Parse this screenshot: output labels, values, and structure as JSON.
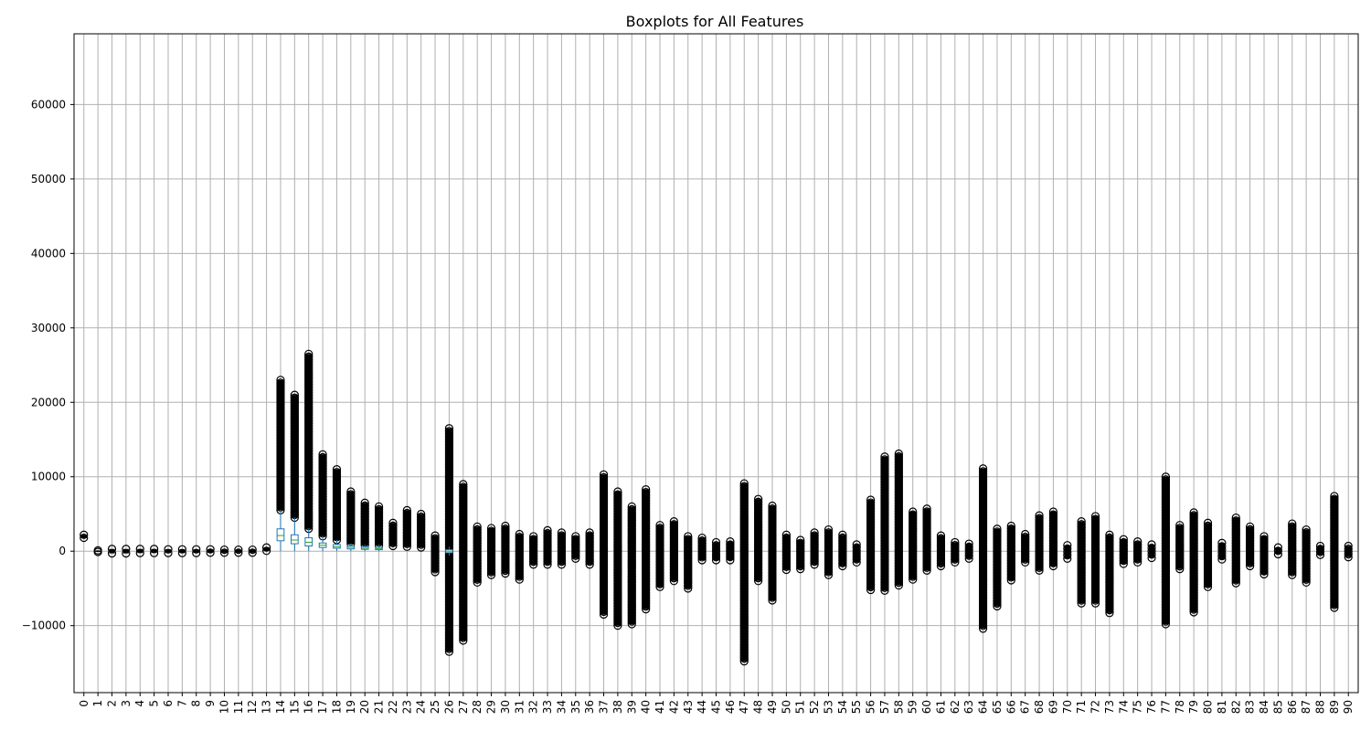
{
  "chart_data": {
    "type": "box",
    "title": "Boxplots for All Features",
    "xlabel": "",
    "ylabel": "",
    "grid": true,
    "ylim": [
      -19000,
      69500
    ],
    "y_ticks": [
      -10000,
      0,
      10000,
      20000,
      30000,
      40000,
      50000,
      60000
    ],
    "categories": [
      "0",
      "1",
      "2",
      "3",
      "4",
      "5",
      "6",
      "7",
      "8",
      "9",
      "10",
      "11",
      "12",
      "13",
      "14",
      "15",
      "16",
      "17",
      "18",
      "19",
      "20",
      "21",
      "22",
      "23",
      "24",
      "25",
      "26",
      "27",
      "28",
      "29",
      "30",
      "31",
      "32",
      "33",
      "34",
      "35",
      "36",
      "37",
      "38",
      "39",
      "40",
      "41",
      "42",
      "43",
      "44",
      "45",
      "46",
      "47",
      "48",
      "49",
      "50",
      "51",
      "52",
      "53",
      "54",
      "55",
      "56",
      "57",
      "58",
      "59",
      "60",
      "61",
      "62",
      "63",
      "64",
      "65",
      "66",
      "67",
      "68",
      "69",
      "70",
      "71",
      "72",
      "73",
      "74",
      "75",
      "76",
      "77",
      "78",
      "79",
      "80",
      "81",
      "82",
      "83",
      "84",
      "85",
      "86",
      "87",
      "88",
      "89",
      "90"
    ],
    "outlier_ranges": [
      [
        1800,
        2200
      ],
      [
        -100,
        100
      ],
      [
        -300,
        300
      ],
      [
        -300,
        300
      ],
      [
        -250,
        300
      ],
      [
        -250,
        300
      ],
      [
        -250,
        250
      ],
      [
        -250,
        250
      ],
      [
        -250,
        250
      ],
      [
        -200,
        250
      ],
      [
        -200,
        200
      ],
      [
        -200,
        200
      ],
      [
        -200,
        200
      ],
      [
        50,
        500
      ],
      [
        5500,
        23000
      ],
      [
        4500,
        21000
      ],
      [
        3000,
        26500
      ],
      [
        2000,
        13000
      ],
      [
        1500,
        11000
      ],
      [
        1000,
        8000
      ],
      [
        800,
        6500
      ],
      [
        800,
        6000
      ],
      [
        700,
        3800
      ],
      [
        600,
        5500
      ],
      [
        500,
        5000
      ],
      [
        -2800,
        2100
      ],
      [
        -13500,
        16500
      ],
      [
        -12000,
        9000
      ],
      [
        -4200,
        3300
      ],
      [
        -3200,
        3100
      ],
      [
        -3000,
        3400
      ],
      [
        -3800,
        2300
      ],
      [
        -1800,
        2000
      ],
      [
        -1800,
        2800
      ],
      [
        -1800,
        2500
      ],
      [
        -1000,
        2000
      ],
      [
        -1800,
        2500
      ],
      [
        -8500,
        10300
      ],
      [
        -10000,
        8000
      ],
      [
        -9800,
        6000
      ],
      [
        -7800,
        8300
      ],
      [
        -4800,
        3500
      ],
      [
        -4000,
        4000
      ],
      [
        -5000,
        2000
      ],
      [
        -1200,
        1800
      ],
      [
        -1200,
        1200
      ],
      [
        -1200,
        1300
      ],
      [
        -14800,
        9100
      ],
      [
        -4000,
        7000
      ],
      [
        -6600,
        6100
      ],
      [
        -2500,
        2200
      ],
      [
        -2400,
        1500
      ],
      [
        -1800,
        2500
      ],
      [
        -3200,
        2900
      ],
      [
        -2000,
        2200
      ],
      [
        -1500,
        900
      ],
      [
        -5200,
        6900
      ],
      [
        -5300,
        12700
      ],
      [
        -4600,
        13100
      ],
      [
        -3800,
        5300
      ],
      [
        -2600,
        5700
      ],
      [
        -2000,
        2100
      ],
      [
        -1500,
        1200
      ],
      [
        -1000,
        1000
      ],
      [
        -10400,
        11100
      ],
      [
        -7400,
        3000
      ],
      [
        -3900,
        3400
      ],
      [
        -1500,
        2300
      ],
      [
        -2600,
        4800
      ],
      [
        -2000,
        5300
      ],
      [
        -1000,
        800
      ],
      [
        -7000,
        4000
      ],
      [
        -7000,
        4700
      ],
      [
        -8300,
        2200
      ],
      [
        -1700,
        1600
      ],
      [
        -1500,
        1300
      ],
      [
        -900,
        900
      ],
      [
        -9800,
        10000
      ],
      [
        -2400,
        3500
      ],
      [
        -8200,
        5200
      ],
      [
        -4800,
        3800
      ],
      [
        -1100,
        1100
      ],
      [
        -4300,
        4500
      ],
      [
        -2000,
        3300
      ],
      [
        -3100,
        2000
      ],
      [
        -400,
        500
      ],
      [
        -3200,
        3700
      ],
      [
        -4200,
        2900
      ],
      [
        -500,
        700
      ],
      [
        -7600,
        7400
      ],
      [
        -800,
        700
      ]
    ],
    "box_stats": [
      {
        "category": "14",
        "q1": 1400,
        "q3": 3000,
        "median": 2100,
        "whisker_low": 0,
        "whisker_high": 5500
      },
      {
        "category": "15",
        "q1": 1000,
        "q3": 2200,
        "median": 1500,
        "whisker_low": 0,
        "whisker_high": 4500
      },
      {
        "category": "16",
        "q1": 700,
        "q3": 1800,
        "median": 1200,
        "whisker_low": 0,
        "whisker_high": 3000
      },
      {
        "category": "17",
        "q1": 500,
        "q3": 1100,
        "median": 800,
        "whisker_low": 0,
        "whisker_high": 2000
      },
      {
        "category": "18",
        "q1": 400,
        "q3": 900,
        "median": 600,
        "whisker_low": 0,
        "whisker_high": 1500
      },
      {
        "category": "19",
        "q1": 300,
        "q3": 700,
        "median": 500,
        "whisker_low": 0,
        "whisker_high": 1000
      },
      {
        "category": "20",
        "q1": 250,
        "q3": 600,
        "median": 400,
        "whisker_low": 0,
        "whisker_high": 800
      },
      {
        "category": "21",
        "q1": 200,
        "q3": 500,
        "median": 350,
        "whisker_low": 0,
        "whisker_high": 800
      },
      {
        "category": "26",
        "q1": -200,
        "q3": 200,
        "median": 0,
        "whisker_low": -600,
        "whisker_high": 600
      }
    ],
    "colors": {
      "box": "#1f77b4",
      "median": "#2ca02c",
      "outlier": "#000000",
      "grid": "#b0b0b0",
      "axes": "#000000"
    }
  }
}
